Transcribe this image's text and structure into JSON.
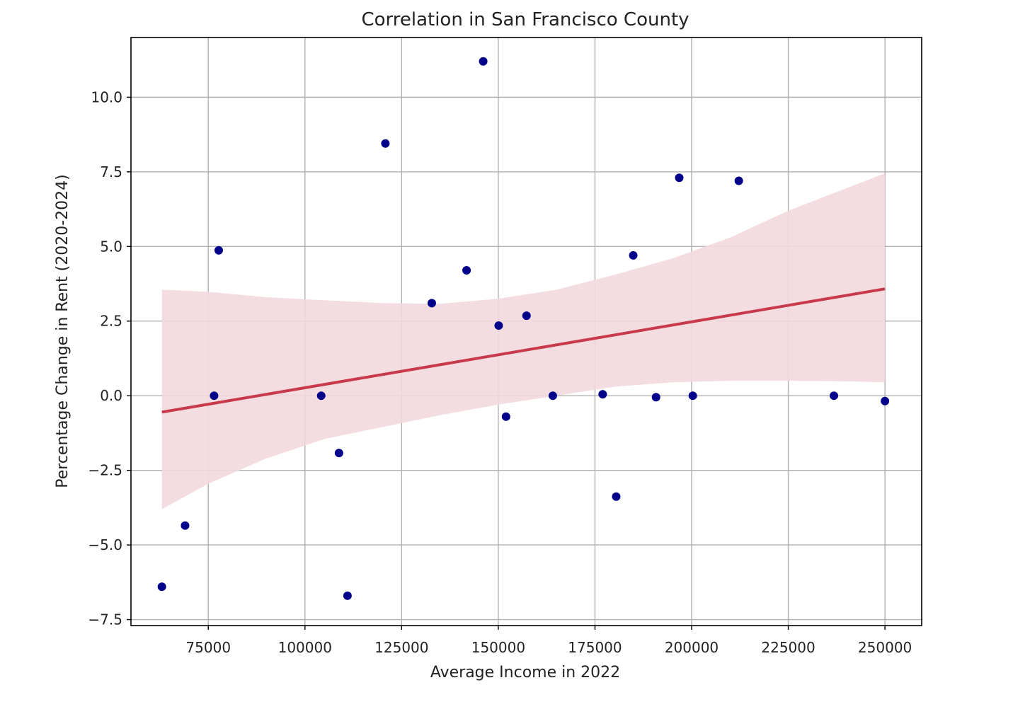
{
  "chart_data": {
    "type": "scatter",
    "title": "Correlation in San Francisco County",
    "xlabel": "Average Income in 2022",
    "ylabel": "Percentage Change in Rent (2020-2024)",
    "xlim": [
      55000,
      259500
    ],
    "ylim": [
      -7.7,
      12.0
    ],
    "grid": true,
    "x_ticks": [
      75000,
      100000,
      125000,
      150000,
      175000,
      200000,
      225000,
      250000
    ],
    "x_tick_labels": [
      "75000",
      "100000",
      "125000",
      "150000",
      "175000",
      "200000",
      "225000",
      "250000"
    ],
    "y_ticks": [
      -7.5,
      -5.0,
      -2.5,
      0.0,
      2.5,
      5.0,
      7.5,
      10.0
    ],
    "y_tick_labels": [
      "−7.5",
      "−5.0",
      "−2.5",
      "0.0",
      "2.5",
      "5.0",
      "7.5",
      "10.0"
    ],
    "series": [
      {
        "type": "scatter",
        "color": "#00008b",
        "points": [
          {
            "x": 63000,
            "y": -6.4
          },
          {
            "x": 69000,
            "y": -4.35
          },
          {
            "x": 76500,
            "y": 0.0
          },
          {
            "x": 77700,
            "y": 4.87
          },
          {
            "x": 104200,
            "y": 0.0
          },
          {
            "x": 108800,
            "y": -1.92
          },
          {
            "x": 111000,
            "y": -6.7
          },
          {
            "x": 120800,
            "y": 8.45
          },
          {
            "x": 132800,
            "y": 3.1
          },
          {
            "x": 141800,
            "y": 4.2
          },
          {
            "x": 146100,
            "y": 11.2
          },
          {
            "x": 150100,
            "y": 2.35
          },
          {
            "x": 152000,
            "y": -0.7
          },
          {
            "x": 157300,
            "y": 2.68
          },
          {
            "x": 164100,
            "y": 0.0
          },
          {
            "x": 177000,
            "y": 0.05
          },
          {
            "x": 180500,
            "y": -3.38
          },
          {
            "x": 184900,
            "y": 4.7
          },
          {
            "x": 190800,
            "y": -0.05
          },
          {
            "x": 196800,
            "y": 7.3
          },
          {
            "x": 200300,
            "y": 0.0
          },
          {
            "x": 212200,
            "y": 7.2
          },
          {
            "x": 236800,
            "y": 0.0
          },
          {
            "x": 250000,
            "y": -0.18
          }
        ]
      },
      {
        "type": "line",
        "color": "#c83a4b",
        "points": [
          {
            "x": 63000,
            "y": -0.55
          },
          {
            "x": 250000,
            "y": 3.58
          }
        ]
      },
      {
        "type": "band",
        "color": "#f2d9de",
        "x": [
          63000,
          75000,
          90000,
          105000,
          120000,
          135000,
          150000,
          165000,
          180000,
          195000,
          210000,
          225000,
          240000,
          250000
        ],
        "upper": [
          3.55,
          3.48,
          3.3,
          3.2,
          3.1,
          3.08,
          3.25,
          3.55,
          4.05,
          4.6,
          5.3,
          6.2,
          6.95,
          7.45
        ],
        "lower": [
          -3.8,
          -2.95,
          -2.1,
          -1.45,
          -1.05,
          -0.65,
          -0.3,
          0.0,
          0.3,
          0.45,
          0.5,
          0.5,
          0.48,
          0.45
        ]
      }
    ]
  }
}
